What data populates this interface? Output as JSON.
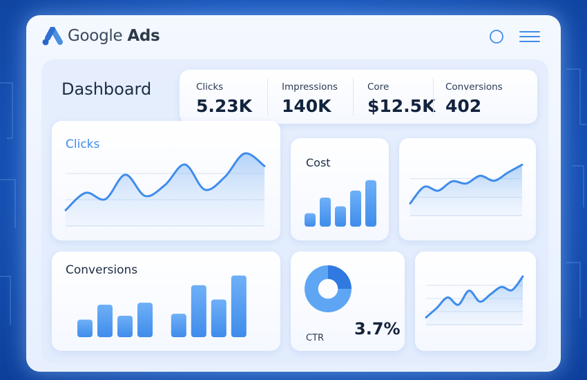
{
  "app": {
    "brand_name": "Google",
    "brand_product": "Ads"
  },
  "page": {
    "title": "Dashboard"
  },
  "stats": [
    {
      "label": "Clicks",
      "value": "5.23K"
    },
    {
      "label": "Impressions",
      "value": "140K"
    },
    {
      "label": "Core",
      "value": "$12.5K"
    },
    {
      "label": "Conversions",
      "value": "402"
    }
  ],
  "colors": {
    "accent": "#3f8ceb",
    "accent_light": "#6fb0f7",
    "text_dark": "#12233d"
  },
  "icons": [
    "google-ads-logo-icon",
    "search-icon",
    "menu-icon"
  ],
  "chart_data": [
    {
      "type": "area",
      "title": "Clicks",
      "x": [
        0,
        1,
        2,
        3,
        4,
        5,
        6,
        7,
        8,
        9,
        10
      ],
      "values": [
        20,
        42,
        34,
        65,
        38,
        52,
        78,
        46,
        62,
        92,
        76
      ]
    },
    {
      "type": "bar",
      "title": "Cost",
      "values": [
        23,
        50,
        35,
        62,
        80
      ]
    },
    {
      "type": "area",
      "title": "",
      "x": [
        0,
        1,
        2,
        3,
        4,
        5,
        6,
        7,
        8
      ],
      "values": [
        22,
        52,
        45,
        62,
        58,
        72,
        63,
        78,
        92
      ]
    },
    {
      "type": "bar",
      "title": "Conversions",
      "values": [
        27,
        50,
        33,
        53,
        0,
        36,
        80,
        58,
        95
      ]
    },
    {
      "type": "pie",
      "title": "CTR",
      "values": [
        25,
        75
      ],
      "center_value": "3.7%"
    },
    {
      "type": "area",
      "title": "",
      "x": [
        0,
        1,
        2,
        3,
        4,
        5,
        6,
        7,
        8,
        9
      ],
      "values": [
        14,
        32,
        52,
        38,
        65,
        44,
        58,
        72,
        66,
        92
      ]
    }
  ]
}
